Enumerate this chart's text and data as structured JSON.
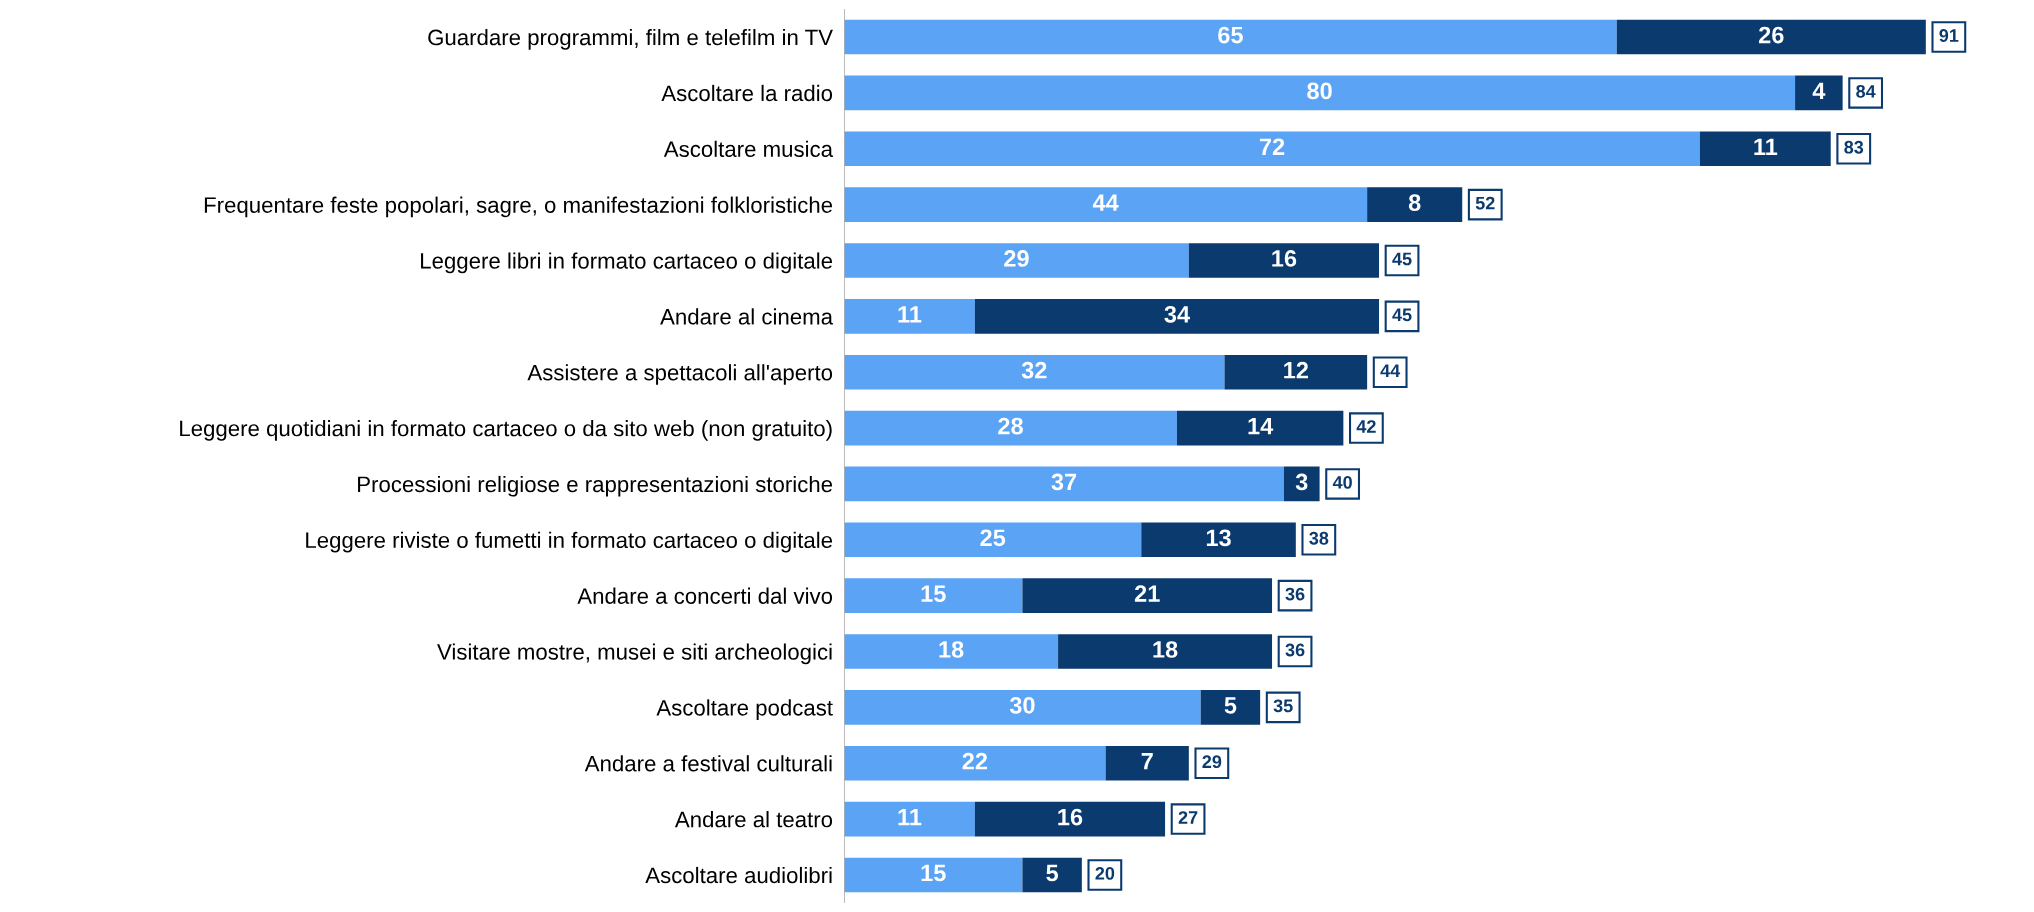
{
  "chart_data": {
    "type": "bar",
    "orientation": "horizontal",
    "stacked": true,
    "data_labels": true,
    "grid": false,
    "legend": false,
    "tick_labels": "y",
    "categories": [
      "Guardare programmi, film e telefilm in TV",
      "Ascoltare la radio",
      "Ascoltare musica",
      "Frequentare feste popolari, sagre, o manifestazioni folkloristiche",
      "Leggere libri in formato cartaceo o digitale",
      "Andare al cinema",
      "Assistere a spettacoli all'aperto",
      "Leggere quotidiani in formato cartaceo o da sito web (non gratuito)",
      "Processioni religiose e rappresentazioni storiche",
      "Leggere riviste o fumetti in formato cartaceo o digitale",
      "Andare a concerti dal vivo",
      "Visitare mostre, musei e siti archeologici",
      "Ascoltare podcast",
      "Andare a festival culturali",
      "Andare al teatro",
      "Ascoltare audiolibri"
    ],
    "series": [
      {
        "color": "#5ba3f5",
        "values": [
          65,
          80,
          72,
          44,
          29,
          11,
          32,
          28,
          37,
          25,
          15,
          18,
          30,
          22,
          11,
          15
        ]
      },
      {
        "color": "#0b3a6e",
        "values": [
          26,
          4,
          11,
          8,
          16,
          34,
          12,
          14,
          3,
          13,
          21,
          18,
          5,
          7,
          16,
          5
        ]
      }
    ],
    "totals": [
      "91",
      "84",
      "83",
      "52",
      "45",
      "45",
      "44",
      "42",
      "40",
      "38",
      "36",
      "36",
      "35",
      "29",
      "27",
      "20"
    ]
  }
}
